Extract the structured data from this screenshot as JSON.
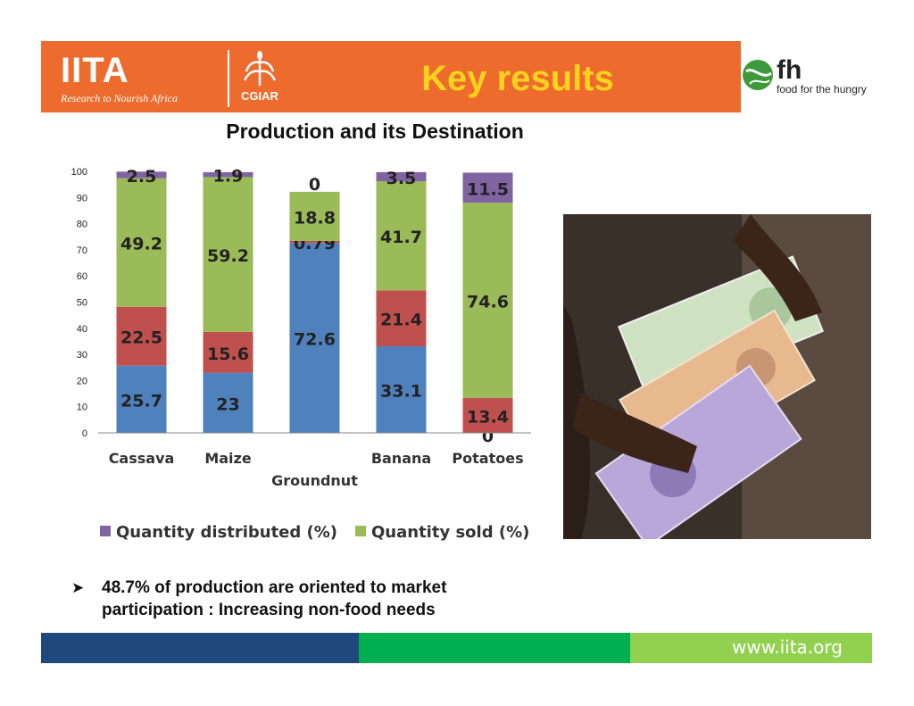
{
  "header": {
    "logo_text": "IITA",
    "logo_tagline": "Research to Nourish Africa",
    "partner_logo": "CGIAR",
    "title": "Key results",
    "sponsor_logo": "fh",
    "sponsor_tagline": "food for the hungry"
  },
  "colors": {
    "header_bg": "#ec6b2d",
    "title_text": "#ffd21f",
    "series_blue": "#4f81bd",
    "series_red": "#c0504d",
    "series_green": "#9bbb59",
    "series_purple": "#8064a2",
    "footer_navy": "#1f497d",
    "footer_green": "#00b050",
    "footer_lime": "#92d050"
  },
  "chart_data": {
    "type": "bar",
    "stacked": true,
    "title": "Production and its Destination",
    "categories": [
      "Cassava",
      "Maize",
      "Groundnut",
      "Banana",
      "Potatoes"
    ],
    "series": [
      {
        "values": [
          25.7,
          23,
          72.6,
          33.1,
          0
        ],
        "color": "#4f81bd"
      },
      {
        "values": [
          22.5,
          15.6,
          0.79,
          21.4,
          13.4
        ],
        "color": "#c0504d"
      },
      {
        "name": "Quantity sold (%)",
        "values": [
          49.2,
          59.2,
          18.8,
          41.7,
          74.6
        ],
        "color": "#9bbb59"
      },
      {
        "name": "Quantity distributed (%)",
        "values": [
          2.5,
          1.9,
          0,
          3.5,
          11.5
        ],
        "color": "#8064a2"
      }
    ],
    "ylim": [
      0,
      100
    ],
    "yticks": [
      0,
      10,
      20,
      30,
      40,
      50,
      60,
      70,
      80,
      90,
      100
    ],
    "grid": false,
    "legend": [
      {
        "label": "Quantity distributed (%)",
        "color": "#8064a2"
      },
      {
        "label": "Quantity sold (%)",
        "color": "#9bbb59"
      }
    ]
  },
  "bullet": {
    "text": "48.7% of production are oriented to market participation : Increasing non-food needs"
  },
  "footer": {
    "url": "www.iita.org"
  }
}
